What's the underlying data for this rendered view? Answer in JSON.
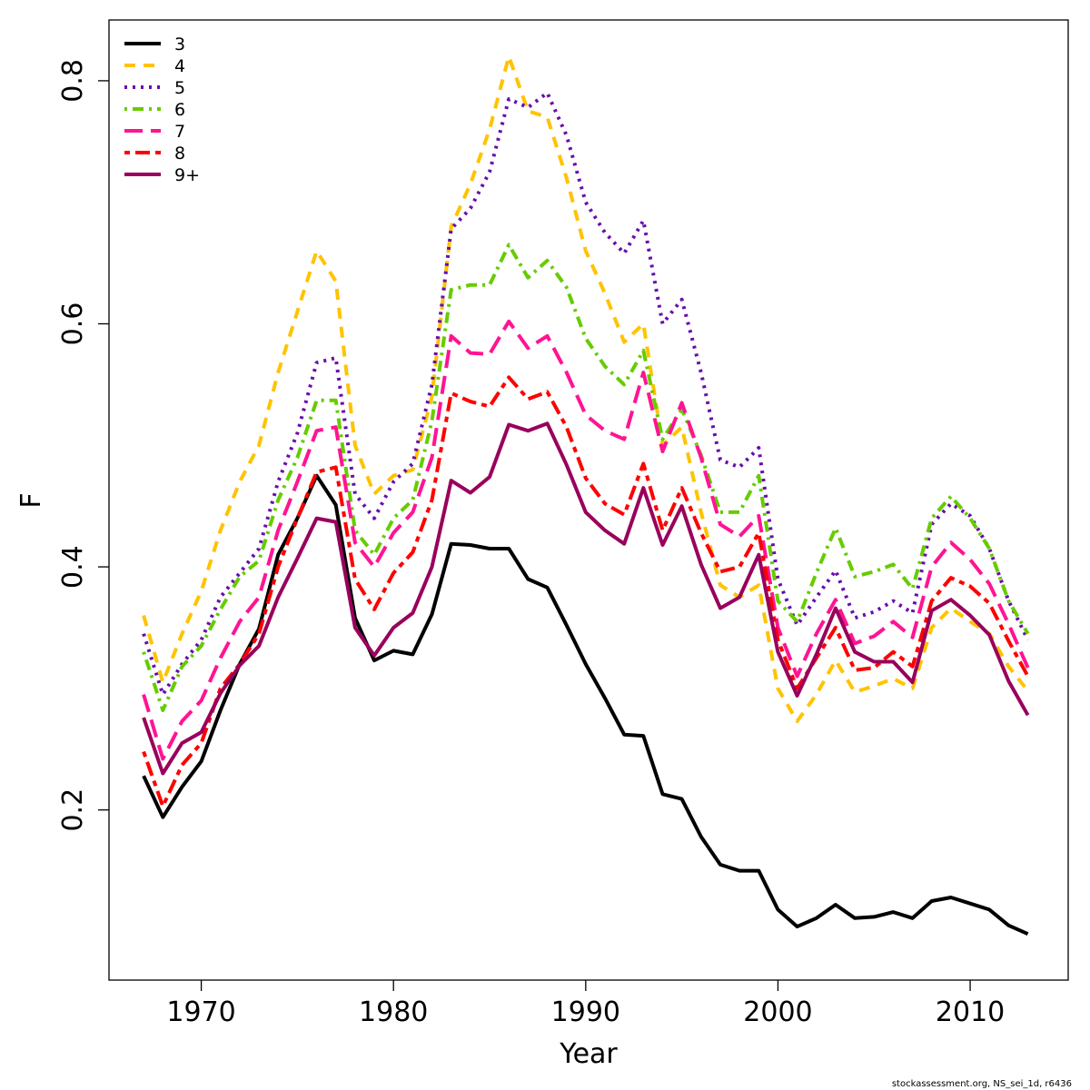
{
  "footer": "stockassessment.org, NS_sei_1d, r6436",
  "chart_data": {
    "type": "line",
    "xlabel": "Year",
    "ylabel": "F",
    "xlim": [
      1965.2,
      2015.1
    ],
    "ylim": [
      0.06,
      0.85
    ],
    "x_ticks": [
      1970,
      1980,
      1990,
      2000,
      2010
    ],
    "y_ticks": [
      0.2,
      0.4,
      0.6,
      0.8
    ],
    "x_tick_labels": [
      "1970",
      "1980",
      "1990",
      "2000",
      "2010"
    ],
    "y_tick_labels": [
      "0.2",
      "0.4",
      "0.6",
      "0.8"
    ],
    "legend_position": "top-left",
    "x": [
      1967,
      1968,
      1969,
      1970,
      1971,
      1972,
      1973,
      1974,
      1975,
      1976,
      1977,
      1978,
      1979,
      1980,
      1981,
      1982,
      1983,
      1984,
      1985,
      1986,
      1987,
      1988,
      1989,
      1990,
      1991,
      1992,
      1993,
      1994,
      1995,
      1996,
      1997,
      1998,
      1999,
      2000,
      2001,
      2002,
      2003,
      2004,
      2005,
      2006,
      2007,
      2008,
      2009,
      2010,
      2011,
      2012,
      2013
    ],
    "series": [
      {
        "name": "3",
        "color": "#000000",
        "dash": "solid",
        "values": [
          0.228,
          0.194,
          0.219,
          0.24,
          0.282,
          0.32,
          0.349,
          0.41,
          0.44,
          0.475,
          0.451,
          0.358,
          0.323,
          0.331,
          0.328,
          0.361,
          0.419,
          0.418,
          0.415,
          0.415,
          0.39,
          0.383,
          0.352,
          0.32,
          0.292,
          0.262,
          0.261,
          0.213,
          0.209,
          0.178,
          0.155,
          0.15,
          0.15,
          0.118,
          0.104,
          0.111,
          0.122,
          0.111,
          0.112,
          0.116,
          0.111,
          0.125,
          0.128,
          0.123,
          0.118,
          0.105,
          0.098
        ]
      },
      {
        "name": "4",
        "color": "#FFC300",
        "dash": "dashed",
        "values": [
          0.36,
          0.305,
          0.345,
          0.38,
          0.43,
          0.47,
          0.5,
          0.56,
          0.61,
          0.66,
          0.635,
          0.5,
          0.46,
          0.475,
          0.48,
          0.54,
          0.68,
          0.715,
          0.76,
          0.82,
          0.775,
          0.77,
          0.72,
          0.66,
          0.625,
          0.585,
          0.6,
          0.5,
          0.515,
          0.445,
          0.385,
          0.375,
          0.385,
          0.3,
          0.273,
          0.295,
          0.323,
          0.297,
          0.302,
          0.308,
          0.3,
          0.35,
          0.366,
          0.355,
          0.345,
          0.318,
          0.298
        ]
      },
      {
        "name": "5",
        "color": "#6A0DAD",
        "dash": "dotted",
        "values": [
          0.345,
          0.295,
          0.32,
          0.34,
          0.375,
          0.395,
          0.415,
          0.47,
          0.51,
          0.568,
          0.572,
          0.46,
          0.44,
          0.47,
          0.485,
          0.55,
          0.678,
          0.695,
          0.725,
          0.785,
          0.778,
          0.79,
          0.755,
          0.7,
          0.675,
          0.658,
          0.685,
          0.6,
          0.62,
          0.56,
          0.488,
          0.482,
          0.498,
          0.39,
          0.352,
          0.375,
          0.397,
          0.358,
          0.363,
          0.372,
          0.362,
          0.435,
          0.452,
          0.442,
          0.415,
          0.372,
          0.34
        ]
      },
      {
        "name": "6",
        "color": "#66CC00",
        "dash": "dotdash",
        "values": [
          0.33,
          0.282,
          0.318,
          0.335,
          0.365,
          0.392,
          0.405,
          0.455,
          0.49,
          0.537,
          0.537,
          0.43,
          0.41,
          0.44,
          0.455,
          0.52,
          0.628,
          0.632,
          0.632,
          0.665,
          0.638,
          0.652,
          0.63,
          0.588,
          0.565,
          0.55,
          0.578,
          0.505,
          0.53,
          0.492,
          0.445,
          0.445,
          0.475,
          0.372,
          0.355,
          0.395,
          0.432,
          0.392,
          0.396,
          0.402,
          0.382,
          0.44,
          0.458,
          0.44,
          0.415,
          0.372,
          0.345
        ]
      },
      {
        "name": "7",
        "color": "#FF1493",
        "dash": "longdash",
        "values": [
          0.295,
          0.242,
          0.273,
          0.29,
          0.325,
          0.355,
          0.375,
          0.43,
          0.47,
          0.512,
          0.515,
          0.42,
          0.4,
          0.428,
          0.445,
          0.49,
          0.59,
          0.576,
          0.575,
          0.602,
          0.58,
          0.59,
          0.56,
          0.525,
          0.512,
          0.505,
          0.56,
          0.495,
          0.535,
          0.49,
          0.435,
          0.425,
          0.442,
          0.35,
          0.31,
          0.345,
          0.373,
          0.337,
          0.343,
          0.355,
          0.342,
          0.4,
          0.42,
          0.406,
          0.386,
          0.353,
          0.317
        ]
      },
      {
        "name": "8",
        "color": "#FF0000",
        "dash": "twodash",
        "values": [
          0.248,
          0.203,
          0.237,
          0.255,
          0.3,
          0.32,
          0.345,
          0.4,
          0.44,
          0.478,
          0.482,
          0.39,
          0.365,
          0.395,
          0.412,
          0.455,
          0.543,
          0.536,
          0.532,
          0.556,
          0.538,
          0.544,
          0.515,
          0.473,
          0.452,
          0.443,
          0.485,
          0.43,
          0.465,
          0.428,
          0.396,
          0.4,
          0.428,
          0.34,
          0.3,
          0.325,
          0.35,
          0.315,
          0.317,
          0.33,
          0.318,
          0.372,
          0.391,
          0.384,
          0.37,
          0.339,
          0.31
        ]
      },
      {
        "name": "9+",
        "color": "#99005C",
        "dash": "solid",
        "values": [
          0.276,
          0.23,
          0.255,
          0.264,
          0.296,
          0.319,
          0.335,
          0.375,
          0.407,
          0.44,
          0.437,
          0.35,
          0.327,
          0.35,
          0.362,
          0.4,
          0.471,
          0.461,
          0.474,
          0.517,
          0.512,
          0.518,
          0.484,
          0.445,
          0.43,
          0.419,
          0.465,
          0.418,
          0.45,
          0.402,
          0.366,
          0.375,
          0.41,
          0.33,
          0.294,
          0.328,
          0.366,
          0.33,
          0.322,
          0.322,
          0.305,
          0.364,
          0.373,
          0.36,
          0.344,
          0.306,
          0.278
        ]
      }
    ]
  }
}
